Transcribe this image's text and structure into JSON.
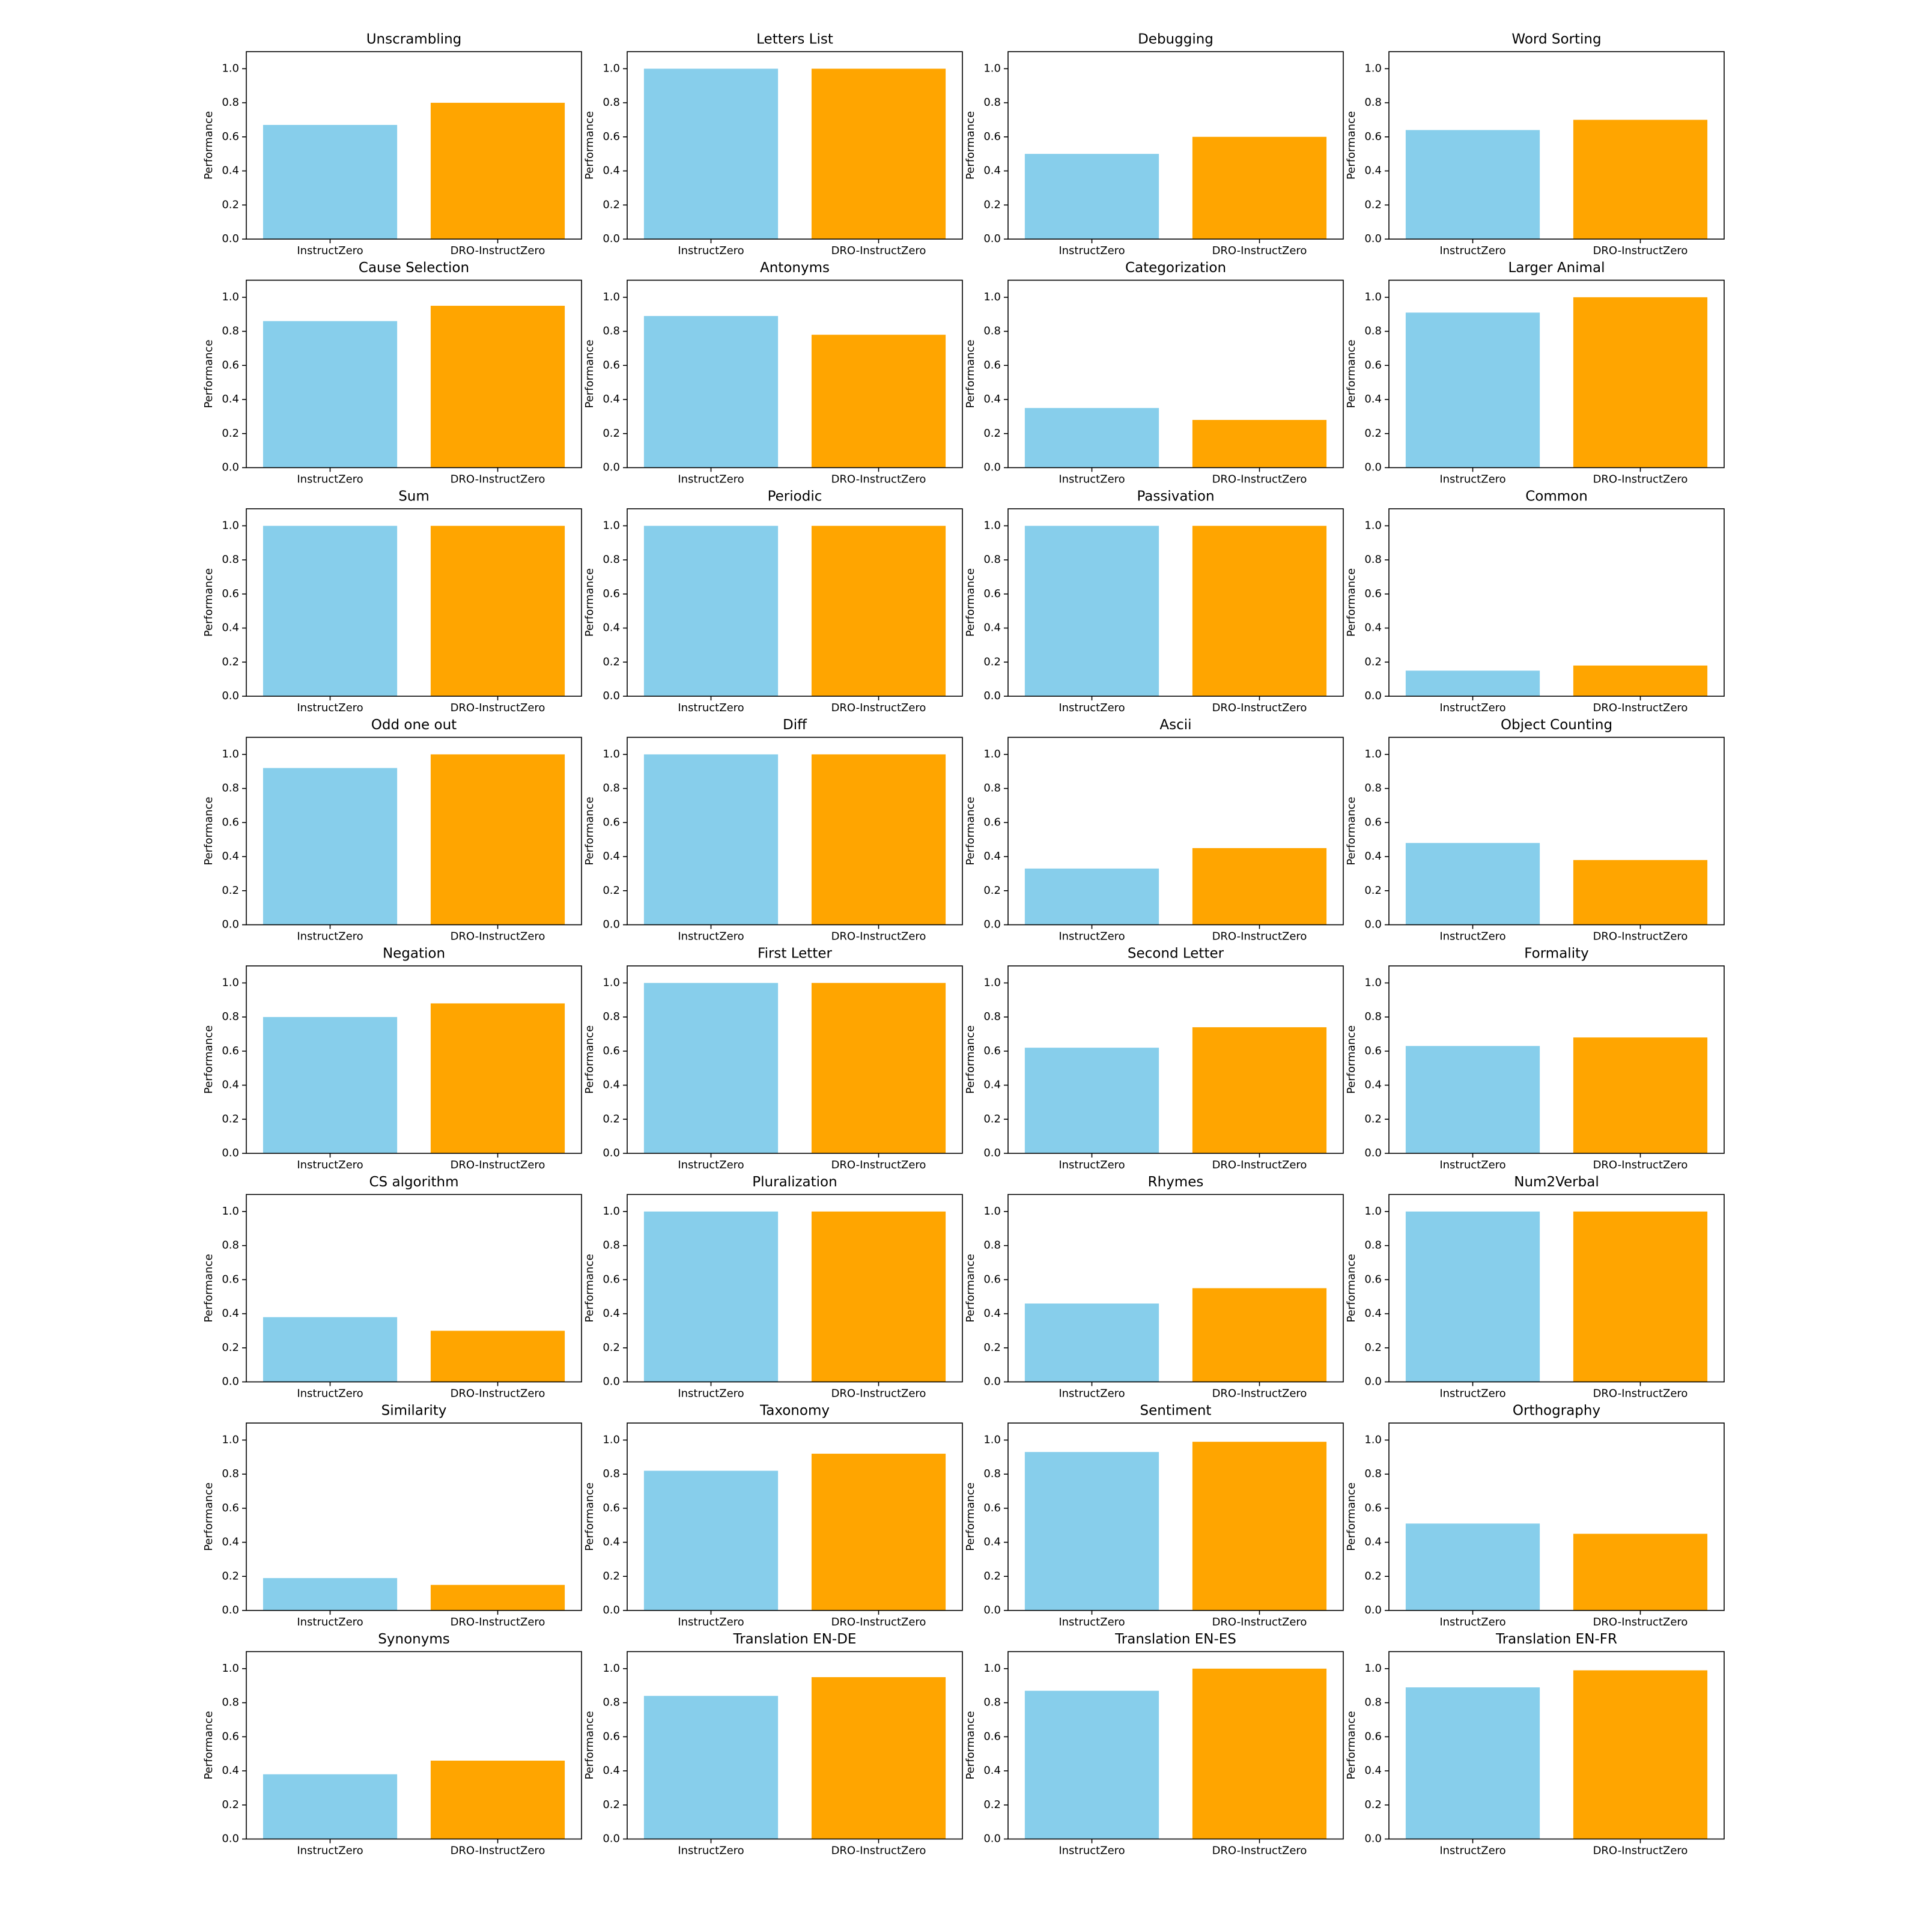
{
  "chart_data": [
    {
      "type": "bar",
      "title": "Unscrambling",
      "ylabel": "Performance",
      "categories": [
        "InstructZero",
        "DRO-InstructZero"
      ],
      "values": [
        0.67,
        0.8
      ],
      "colors": [
        "#87ceeb",
        "#ffa500"
      ],
      "ylim": [
        0,
        1.1
      ],
      "yticks": [
        {
          "value": 0,
          "label": "0.0"
        },
        0.2,
        0.4,
        0.6,
        0.8,
        {
          "value": 1,
          "label": "1.0"
        }
      ]
    },
    {
      "type": "bar",
      "title": "Letters List",
      "ylabel": "Performance",
      "categories": [
        "InstructZero",
        "DRO-InstructZero"
      ],
      "values": [
        1.0,
        1.0
      ],
      "colors": [
        "#87ceeb",
        "#ffa500"
      ],
      "ylim": [
        0,
        1.1
      ],
      "yticks": [
        {
          "value": 0,
          "label": "0.0"
        },
        0.2,
        0.4,
        0.6,
        0.8,
        {
          "value": 1,
          "label": "1.0"
        }
      ]
    },
    {
      "type": "bar",
      "title": "Debugging",
      "ylabel": "Performance",
      "categories": [
        "InstructZero",
        "DRO-InstructZero"
      ],
      "values": [
        0.5,
        0.6
      ],
      "colors": [
        "#87ceeb",
        "#ffa500"
      ],
      "ylim": [
        0,
        1.1
      ],
      "yticks": [
        {
          "value": 0,
          "label": "0.0"
        },
        0.2,
        0.4,
        0.6,
        0.8,
        {
          "value": 1,
          "label": "1.0"
        }
      ]
    },
    {
      "type": "bar",
      "title": "Word Sorting",
      "ylabel": "Performance",
      "categories": [
        "InstructZero",
        "DRO-InstructZero"
      ],
      "values": [
        0.64,
        0.7
      ],
      "colors": [
        "#87ceeb",
        "#ffa500"
      ],
      "ylim": [
        0,
        1.1
      ],
      "yticks": [
        {
          "value": 0,
          "label": "0.0"
        },
        0.2,
        0.4,
        0.6,
        0.8,
        {
          "value": 1,
          "label": "1.0"
        }
      ]
    },
    {
      "type": "bar",
      "title": "Cause Selection",
      "ylabel": "Performance",
      "categories": [
        "InstructZero",
        "DRO-InstructZero"
      ],
      "values": [
        0.86,
        0.95
      ],
      "colors": [
        "#87ceeb",
        "#ffa500"
      ],
      "ylim": [
        0,
        1.1
      ],
      "yticks": [
        {
          "value": 0,
          "label": "0.0"
        },
        0.2,
        0.4,
        0.6,
        0.8,
        {
          "value": 1,
          "label": "1.0"
        }
      ]
    },
    {
      "type": "bar",
      "title": "Antonyms",
      "ylabel": "Performance",
      "categories": [
        "InstructZero",
        "DRO-InstructZero"
      ],
      "values": [
        0.89,
        0.78
      ],
      "colors": [
        "#87ceeb",
        "#ffa500"
      ],
      "ylim": [
        0,
        1.1
      ],
      "yticks": [
        {
          "value": 0,
          "label": "0.0"
        },
        0.2,
        0.4,
        0.6,
        0.8,
        {
          "value": 1,
          "label": "1.0"
        }
      ]
    },
    {
      "type": "bar",
      "title": "Categorization",
      "ylabel": "Performance",
      "categories": [
        "InstructZero",
        "DRO-InstructZero"
      ],
      "values": [
        0.35,
        0.28
      ],
      "colors": [
        "#87ceeb",
        "#ffa500"
      ],
      "ylim": [
        0,
        1.1
      ],
      "yticks": [
        {
          "value": 0,
          "label": "0.0"
        },
        0.2,
        0.4,
        0.6,
        0.8,
        {
          "value": 1,
          "label": "1.0"
        }
      ]
    },
    {
      "type": "bar",
      "title": "Larger Animal",
      "ylabel": "Performance",
      "categories": [
        "InstructZero",
        "DRO-InstructZero"
      ],
      "values": [
        0.91,
        1.0
      ],
      "colors": [
        "#87ceeb",
        "#ffa500"
      ],
      "ylim": [
        0,
        1.1
      ],
      "yticks": [
        {
          "value": 0,
          "label": "0.0"
        },
        0.2,
        0.4,
        0.6,
        0.8,
        {
          "value": 1,
          "label": "1.0"
        }
      ]
    },
    {
      "type": "bar",
      "title": "Sum",
      "ylabel": "Performance",
      "categories": [
        "InstructZero",
        "DRO-InstructZero"
      ],
      "values": [
        1.0,
        1.0
      ],
      "colors": [
        "#87ceeb",
        "#ffa500"
      ],
      "ylim": [
        0,
        1.1
      ],
      "yticks": [
        {
          "value": 0,
          "label": "0.0"
        },
        0.2,
        0.4,
        0.6,
        0.8,
        {
          "value": 1,
          "label": "1.0"
        }
      ]
    },
    {
      "type": "bar",
      "title": "Periodic",
      "ylabel": "Performance",
      "categories": [
        "InstructZero",
        "DRO-InstructZero"
      ],
      "values": [
        1.0,
        1.0
      ],
      "colors": [
        "#87ceeb",
        "#ffa500"
      ],
      "ylim": [
        0,
        1.1
      ],
      "yticks": [
        {
          "value": 0,
          "label": "0.0"
        },
        0.2,
        0.4,
        0.6,
        0.8,
        {
          "value": 1,
          "label": "1.0"
        }
      ]
    },
    {
      "type": "bar",
      "title": "Passivation",
      "ylabel": "Performance",
      "categories": [
        "InstructZero",
        "DRO-InstructZero"
      ],
      "values": [
        1.0,
        1.0
      ],
      "colors": [
        "#87ceeb",
        "#ffa500"
      ],
      "ylim": [
        0,
        1.1
      ],
      "yticks": [
        {
          "value": 0,
          "label": "0.0"
        },
        0.2,
        0.4,
        0.6,
        0.8,
        {
          "value": 1,
          "label": "1.0"
        }
      ]
    },
    {
      "type": "bar",
      "title": "Common",
      "ylabel": "Performance",
      "categories": [
        "InstructZero",
        "DRO-InstructZero"
      ],
      "values": [
        0.15,
        0.18
      ],
      "colors": [
        "#87ceeb",
        "#ffa500"
      ],
      "ylim": [
        0,
        1.1
      ],
      "yticks": [
        {
          "value": 0,
          "label": "0.0"
        },
        0.2,
        0.4,
        0.6,
        0.8,
        {
          "value": 1,
          "label": "1.0"
        }
      ]
    },
    {
      "type": "bar",
      "title": "Odd one out",
      "ylabel": "Performance",
      "categories": [
        "InstructZero",
        "DRO-InstructZero"
      ],
      "values": [
        0.92,
        1.0
      ],
      "colors": [
        "#87ceeb",
        "#ffa500"
      ],
      "ylim": [
        0,
        1.1
      ],
      "yticks": [
        {
          "value": 0,
          "label": "0.0"
        },
        0.2,
        0.4,
        0.6,
        0.8,
        {
          "value": 1,
          "label": "1.0"
        }
      ]
    },
    {
      "type": "bar",
      "title": "Diff",
      "ylabel": "Performance",
      "categories": [
        "InstructZero",
        "DRO-InstructZero"
      ],
      "values": [
        1.0,
        1.0
      ],
      "colors": [
        "#87ceeb",
        "#ffa500"
      ],
      "ylim": [
        0,
        1.1
      ],
      "yticks": [
        {
          "value": 0,
          "label": "0.0"
        },
        0.2,
        0.4,
        0.6,
        0.8,
        {
          "value": 1,
          "label": "1.0"
        }
      ]
    },
    {
      "type": "bar",
      "title": "Ascii",
      "ylabel": "Performance",
      "categories": [
        "InstructZero",
        "DRO-InstructZero"
      ],
      "values": [
        0.33,
        0.45
      ],
      "colors": [
        "#87ceeb",
        "#ffa500"
      ],
      "ylim": [
        0,
        1.1
      ],
      "yticks": [
        {
          "value": 0,
          "label": "0.0"
        },
        0.2,
        0.4,
        0.6,
        0.8,
        {
          "value": 1,
          "label": "1.0"
        }
      ]
    },
    {
      "type": "bar",
      "title": "Object Counting",
      "ylabel": "Performance",
      "categories": [
        "InstructZero",
        "DRO-InstructZero"
      ],
      "values": [
        0.48,
        0.38
      ],
      "colors": [
        "#87ceeb",
        "#ffa500"
      ],
      "ylim": [
        0,
        1.1
      ],
      "yticks": [
        {
          "value": 0,
          "label": "0.0"
        },
        0.2,
        0.4,
        0.6,
        0.8,
        {
          "value": 1,
          "label": "1.0"
        }
      ]
    },
    {
      "type": "bar",
      "title": "Negation",
      "ylabel": "Performance",
      "categories": [
        "InstructZero",
        "DRO-InstructZero"
      ],
      "values": [
        0.8,
        0.88
      ],
      "colors": [
        "#87ceeb",
        "#ffa500"
      ],
      "ylim": [
        0,
        1.1
      ],
      "yticks": [
        {
          "value": 0,
          "label": "0.0"
        },
        0.2,
        0.4,
        0.6,
        0.8,
        {
          "value": 1,
          "label": "1.0"
        }
      ]
    },
    {
      "type": "bar",
      "title": "First Letter",
      "ylabel": "Performance",
      "categories": [
        "InstructZero",
        "DRO-InstructZero"
      ],
      "values": [
        1.0,
        1.0
      ],
      "colors": [
        "#87ceeb",
        "#ffa500"
      ],
      "ylim": [
        0,
        1.1
      ],
      "yticks": [
        {
          "value": 0,
          "label": "0.0"
        },
        0.2,
        0.4,
        0.6,
        0.8,
        {
          "value": 1,
          "label": "1.0"
        }
      ]
    },
    {
      "type": "bar",
      "title": "Second Letter",
      "ylabel": "Performance",
      "categories": [
        "InstructZero",
        "DRO-InstructZero"
      ],
      "values": [
        0.62,
        0.74
      ],
      "colors": [
        "#87ceeb",
        "#ffa500"
      ],
      "ylim": [
        0,
        1.1
      ],
      "yticks": [
        {
          "value": 0,
          "label": "0.0"
        },
        0.2,
        0.4,
        0.6,
        0.8,
        {
          "value": 1,
          "label": "1.0"
        }
      ]
    },
    {
      "type": "bar",
      "title": "Formality",
      "ylabel": "Performance",
      "categories": [
        "InstructZero",
        "DRO-InstructZero"
      ],
      "values": [
        0.63,
        0.68
      ],
      "colors": [
        "#87ceeb",
        "#ffa500"
      ],
      "ylim": [
        0,
        1.1
      ],
      "yticks": [
        {
          "value": 0,
          "label": "0.0"
        },
        0.2,
        0.4,
        0.6,
        0.8,
        {
          "value": 1,
          "label": "1.0"
        }
      ]
    },
    {
      "type": "bar",
      "title": "CS algorithm",
      "ylabel": "Performance",
      "categories": [
        "InstructZero",
        "DRO-InstructZero"
      ],
      "values": [
        0.38,
        0.3
      ],
      "colors": [
        "#87ceeb",
        "#ffa500"
      ],
      "ylim": [
        0,
        1.1
      ],
      "yticks": [
        {
          "value": 0,
          "label": "0.0"
        },
        0.2,
        0.4,
        0.6,
        0.8,
        {
          "value": 1,
          "label": "1.0"
        }
      ]
    },
    {
      "type": "bar",
      "title": "Pluralization",
      "ylabel": "Performance",
      "categories": [
        "InstructZero",
        "DRO-InstructZero"
      ],
      "values": [
        1.0,
        1.0
      ],
      "colors": [
        "#87ceeb",
        "#ffa500"
      ],
      "ylim": [
        0,
        1.1
      ],
      "yticks": [
        {
          "value": 0,
          "label": "0.0"
        },
        0.2,
        0.4,
        0.6,
        0.8,
        {
          "value": 1,
          "label": "1.0"
        }
      ]
    },
    {
      "type": "bar",
      "title": "Rhymes",
      "ylabel": "Performance",
      "categories": [
        "InstructZero",
        "DRO-InstructZero"
      ],
      "values": [
        0.46,
        0.55
      ],
      "colors": [
        "#87ceeb",
        "#ffa500"
      ],
      "ylim": [
        0,
        1.1
      ],
      "yticks": [
        {
          "value": 0,
          "label": "0.0"
        },
        0.2,
        0.4,
        0.6,
        0.8,
        {
          "value": 1,
          "label": "1.0"
        }
      ]
    },
    {
      "type": "bar",
      "title": "Num2Verbal",
      "ylabel": "Performance",
      "categories": [
        "InstructZero",
        "DRO-InstructZero"
      ],
      "values": [
        1.0,
        1.0
      ],
      "colors": [
        "#87ceeb",
        "#ffa500"
      ],
      "ylim": [
        0,
        1.1
      ],
      "yticks": [
        {
          "value": 0,
          "label": "0.0"
        },
        0.2,
        0.4,
        0.6,
        0.8,
        {
          "value": 1,
          "label": "1.0"
        }
      ]
    },
    {
      "type": "bar",
      "title": "Similarity",
      "ylabel": "Performance",
      "categories": [
        "InstructZero",
        "DRO-InstructZero"
      ],
      "values": [
        0.19,
        0.15
      ],
      "colors": [
        "#87ceeb",
        "#ffa500"
      ],
      "ylim": [
        0,
        1.1
      ],
      "yticks": [
        {
          "value": 0,
          "label": "0.0"
        },
        0.2,
        0.4,
        0.6,
        0.8,
        {
          "value": 1,
          "label": "1.0"
        }
      ]
    },
    {
      "type": "bar",
      "title": "Taxonomy",
      "ylabel": "Performance",
      "categories": [
        "InstructZero",
        "DRO-InstructZero"
      ],
      "values": [
        0.82,
        0.92
      ],
      "colors": [
        "#87ceeb",
        "#ffa500"
      ],
      "ylim": [
        0,
        1.1
      ],
      "yticks": [
        {
          "value": 0,
          "label": "0.0"
        },
        0.2,
        0.4,
        0.6,
        0.8,
        {
          "value": 1,
          "label": "1.0"
        }
      ]
    },
    {
      "type": "bar",
      "title": "Sentiment",
      "ylabel": "Performance",
      "categories": [
        "InstructZero",
        "DRO-InstructZero"
      ],
      "values": [
        0.93,
        0.99
      ],
      "colors": [
        "#87ceeb",
        "#ffa500"
      ],
      "ylim": [
        0,
        1.1
      ],
      "yticks": [
        {
          "value": 0,
          "label": "0.0"
        },
        0.2,
        0.4,
        0.6,
        0.8,
        {
          "value": 1,
          "label": "1.0"
        }
      ]
    },
    {
      "type": "bar",
      "title": "Orthography",
      "ylabel": "Performance",
      "categories": [
        "InstructZero",
        "DRO-InstructZero"
      ],
      "values": [
        0.51,
        0.45
      ],
      "colors": [
        "#87ceeb",
        "#ffa500"
      ],
      "ylim": [
        0,
        1.1
      ],
      "yticks": [
        {
          "value": 0,
          "label": "0.0"
        },
        0.2,
        0.4,
        0.6,
        0.8,
        {
          "value": 1,
          "label": "1.0"
        }
      ]
    },
    {
      "type": "bar",
      "title": "Synonyms",
      "ylabel": "Performance",
      "categories": [
        "InstructZero",
        "DRO-InstructZero"
      ],
      "values": [
        0.38,
        0.46
      ],
      "colors": [
        "#87ceeb",
        "#ffa500"
      ],
      "ylim": [
        0,
        1.1
      ],
      "yticks": [
        {
          "value": 0,
          "label": "0.0"
        },
        0.2,
        0.4,
        0.6,
        0.8,
        {
          "value": 1,
          "label": "1.0"
        }
      ]
    },
    {
      "type": "bar",
      "title": "Translation EN-DE",
      "ylabel": "Performance",
      "categories": [
        "InstructZero",
        "DRO-InstructZero"
      ],
      "values": [
        0.84,
        0.95
      ],
      "colors": [
        "#87ceeb",
        "#ffa500"
      ],
      "ylim": [
        0,
        1.1
      ],
      "yticks": [
        {
          "value": 0,
          "label": "0.0"
        },
        0.2,
        0.4,
        0.6,
        0.8,
        {
          "value": 1,
          "label": "1.0"
        }
      ]
    },
    {
      "type": "bar",
      "title": "Translation EN-ES",
      "ylabel": "Performance",
      "categories": [
        "InstructZero",
        "DRO-InstructZero"
      ],
      "values": [
        0.87,
        1.0
      ],
      "colors": [
        "#87ceeb",
        "#ffa500"
      ],
      "ylim": [
        0,
        1.1
      ],
      "yticks": [
        {
          "value": 0,
          "label": "0.0"
        },
        0.2,
        0.4,
        0.6,
        0.8,
        {
          "value": 1,
          "label": "1.0"
        }
      ]
    },
    {
      "type": "bar",
      "title": "Translation EN-FR",
      "ylabel": "Performance",
      "categories": [
        "InstructZero",
        "DRO-InstructZero"
      ],
      "values": [
        0.89,
        0.99
      ],
      "colors": [
        "#87ceeb",
        "#ffa500"
      ],
      "ylim": [
        0,
        1.1
      ],
      "yticks": [
        {
          "value": 0,
          "label": "0.0"
        },
        0.2,
        0.4,
        0.6,
        0.8,
        {
          "value": 1,
          "label": "1.0"
        }
      ]
    }
  ]
}
